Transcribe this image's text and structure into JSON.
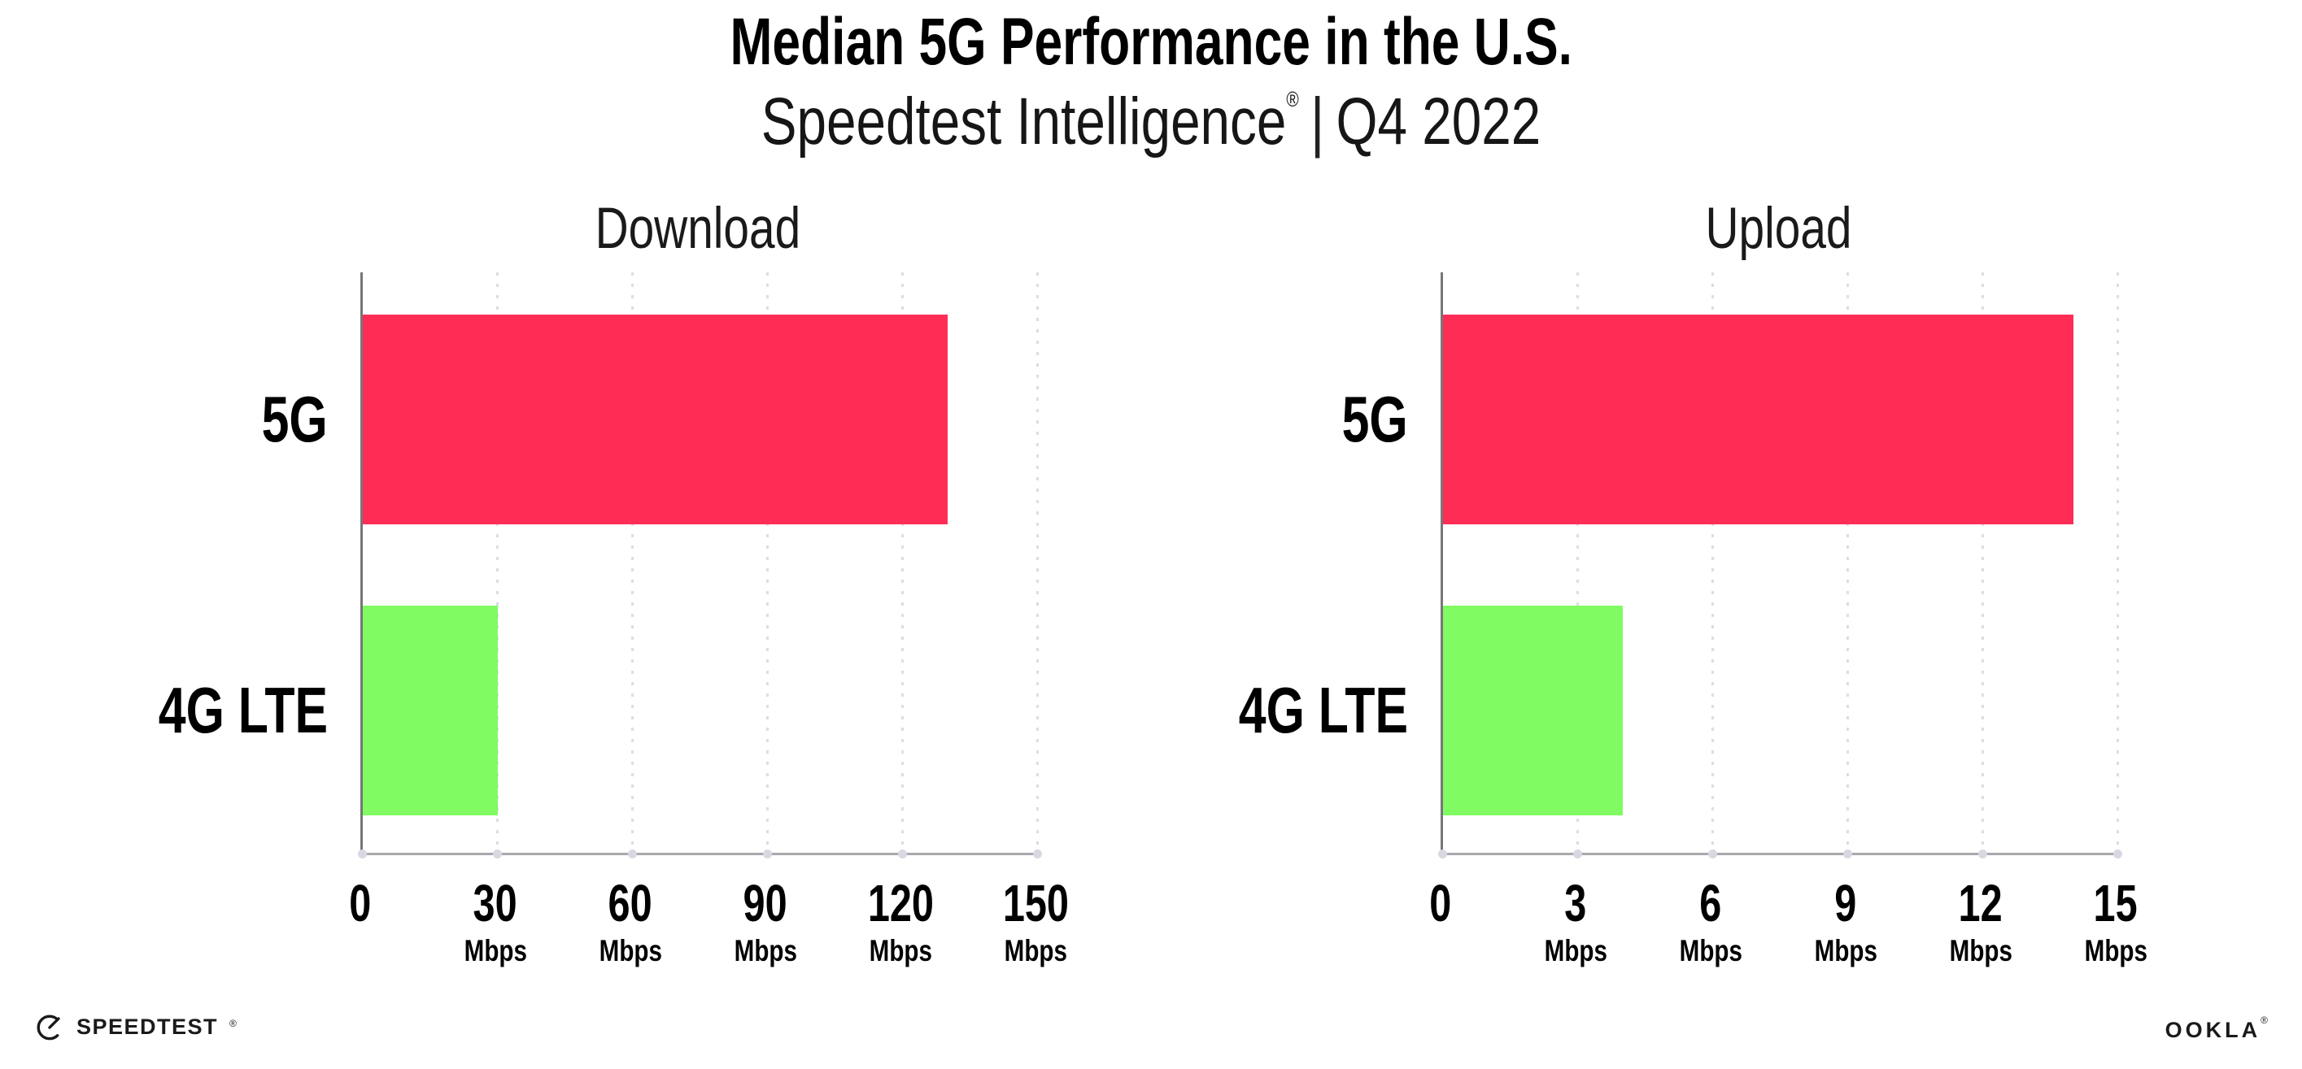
{
  "header": {
    "title": "Median 5G Performance in the U.S.",
    "subtitle_brand": "Speedtest Intelligence",
    "subtitle_mark": "®",
    "subtitle_divider": "|",
    "subtitle_quarter": "Q4 2022"
  },
  "chart_data": [
    {
      "type": "bar",
      "orientation": "horizontal",
      "title": "Download",
      "categories": [
        "5G",
        "4G LTE"
      ],
      "values": [
        130,
        30
      ],
      "colors": [
        "#FF2D55",
        "#80FB61"
      ],
      "unit": "Mbps",
      "xlabel": "Mbps",
      "ylabel": "",
      "xlim": [
        0,
        150
      ],
      "xticks": [
        0,
        30,
        60,
        90,
        120,
        150
      ],
      "grid": true,
      "gridline_style": "dotted",
      "legend": "none"
    },
    {
      "type": "bar",
      "orientation": "horizontal",
      "title": "Upload",
      "categories": [
        "5G",
        "4G LTE"
      ],
      "values": [
        14,
        4
      ],
      "colors": [
        "#FF2D55",
        "#80FB61"
      ],
      "unit": "Mbps",
      "xlabel": "Mbps",
      "ylabel": "",
      "xlim": [
        0,
        15
      ],
      "xticks": [
        0,
        3,
        6,
        9,
        12,
        15
      ],
      "grid": true,
      "gridline_style": "dotted",
      "legend": "none"
    }
  ],
  "footer": {
    "speedtest_label": "SPEEDTEST",
    "speedtest_mark": "®",
    "ookla_label": "OOKLA",
    "ookla_mark": "®"
  },
  "style": {
    "bar_5g_color": "#FF2D55",
    "bar_4g_color": "#80FB61",
    "gridline_color": "#dcdde8",
    "axis_y_color": "#76767b",
    "axis_x_color": "#a8a8ad"
  }
}
